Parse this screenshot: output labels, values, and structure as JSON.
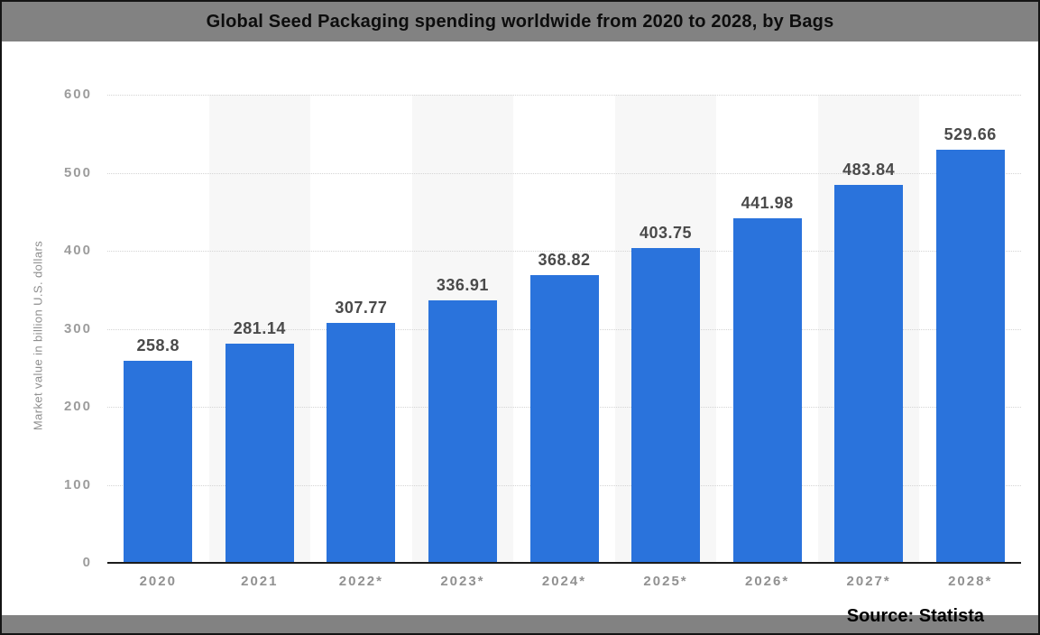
{
  "header": {
    "title": "Global Seed Packaging spending worldwide from 2020 to 2028, by Bags"
  },
  "footer": {
    "source_label": "Source: Statista"
  },
  "chart_data": {
    "type": "bar",
    "title": "Global Seed Packaging spending worldwide from 2020 to 2028, by Bags",
    "categories": [
      "2020",
      "2021",
      "2022*",
      "2023*",
      "2024*",
      "2025*",
      "2026*",
      "2027*",
      "2028*"
    ],
    "values": [
      258.8,
      281.14,
      307.77,
      336.91,
      368.82,
      403.75,
      441.98,
      483.84,
      529.66
    ],
    "value_labels": [
      "258.8",
      "281.14",
      "307.77",
      "336.91",
      "368.82",
      "403.75",
      "441.98",
      "483.84",
      "529.66"
    ],
    "xlabel": "",
    "ylabel": "Market value in billion U.S. dollars",
    "ylim": [
      0,
      600
    ],
    "yticks": [
      0,
      100,
      200,
      300,
      400,
      500,
      600
    ],
    "grid": "horizontal dotted gridlines, alternating vertical column shading",
    "legend": "none",
    "source": "Source: Statista",
    "colors": {
      "bar": "#2a73dc",
      "plot_band": "#f7f7f7",
      "header_bar": "#828282",
      "title_text": "#0d0d0d",
      "value_label": "#4a4a4a",
      "axis_tick": "#9c9c9c",
      "axis_line": "#1c1c1c",
      "gridline": "#d4d4d4",
      "source_text": "#000000"
    }
  }
}
